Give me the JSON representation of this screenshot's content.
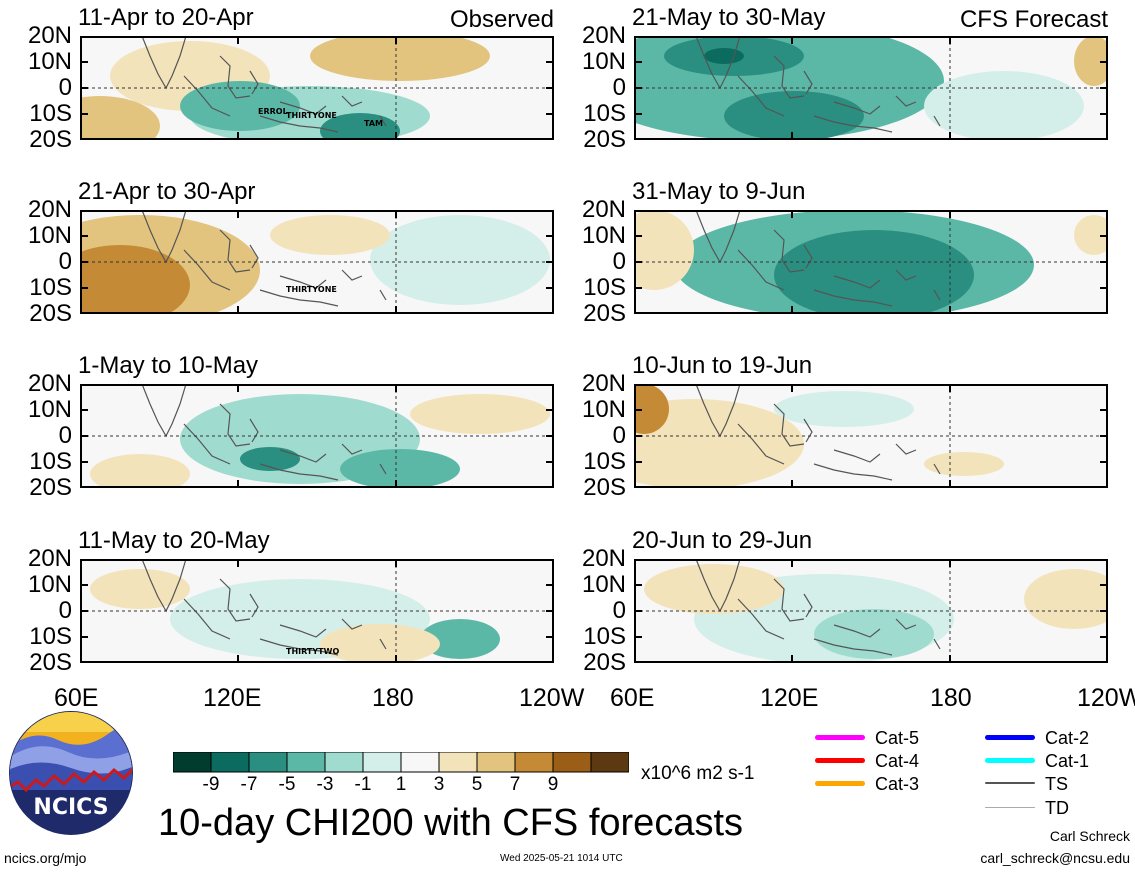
{
  "panels_observed": [
    {
      "title": "11-Apr to 20-Apr",
      "tag": "Observed",
      "storms": [
        "ERROL",
        "THIRTYONE",
        "TAM"
      ]
    },
    {
      "title": "21-Apr to 30-Apr",
      "tag": "",
      "storms": [
        "THIRTYONE"
      ]
    },
    {
      "title": "1-May to 10-May",
      "tag": "",
      "storms": []
    },
    {
      "title": "11-May to 20-May",
      "tag": "",
      "storms": [
        "THIRTYTWO"
      ]
    }
  ],
  "panels_forecast": [
    {
      "title": "21-May to 30-May",
      "tag": "CFS Forecast"
    },
    {
      "title": "31-May to 9-Jun",
      "tag": ""
    },
    {
      "title": "10-Jun to 19-Jun",
      "tag": ""
    },
    {
      "title": "20-Jun to 29-Jun",
      "tag": ""
    }
  ],
  "lat_labels": [
    "20N",
    "10N",
    "0",
    "10S",
    "20S"
  ],
  "lon_labels": [
    "60E",
    "120E",
    "180",
    "120W"
  ],
  "colorbar": {
    "labels": [
      "-9",
      "-7",
      "-5",
      "-3",
      "-1",
      "1",
      "3",
      "5",
      "7",
      "9"
    ],
    "colors": [
      "#003d2e",
      "#0b6b5e",
      "#2a8f80",
      "#5cb8a6",
      "#9fdccf",
      "#d4efe9",
      "#f7f7f7",
      "#f3e3bb",
      "#e2c47e",
      "#c48a36",
      "#9a5e17",
      "#5c3910"
    ],
    "units": "x10^6 m2 s-1"
  },
  "storm_legend": [
    {
      "label": "Cat-5",
      "color": "#ff00ff"
    },
    {
      "label": "Cat-4",
      "color": "#ff0000"
    },
    {
      "label": "Cat-3",
      "color": "#ffa500"
    },
    {
      "label": "Cat-2",
      "color": "#0000ff"
    },
    {
      "label": "Cat-1",
      "color": "#00ffff"
    },
    {
      "label": "TS",
      "color": "#555555"
    },
    {
      "label": "TD",
      "color": "#aaaaaa"
    }
  ],
  "logo": {
    "text": "NCICS"
  },
  "main_title": "10-day CHI200 with CFS forecasts",
  "footer": {
    "url": "ncics.org/mjo",
    "timestamp": "Wed 2025-05-21 1014 UTC",
    "author": "Carl Schreck",
    "email": "carl_schreck@ncsu.edu"
  },
  "chart_data": {
    "type": "heatmap",
    "variable": "10-day CHI200",
    "x_range": [
      "60E",
      "120W"
    ],
    "y_range": [
      "20S",
      "20N"
    ],
    "contour_levels": [
      -9,
      -7,
      -5,
      -3,
      -1,
      1,
      3,
      5,
      7,
      9
    ],
    "units": "x10^6 m2 s-1"
  }
}
